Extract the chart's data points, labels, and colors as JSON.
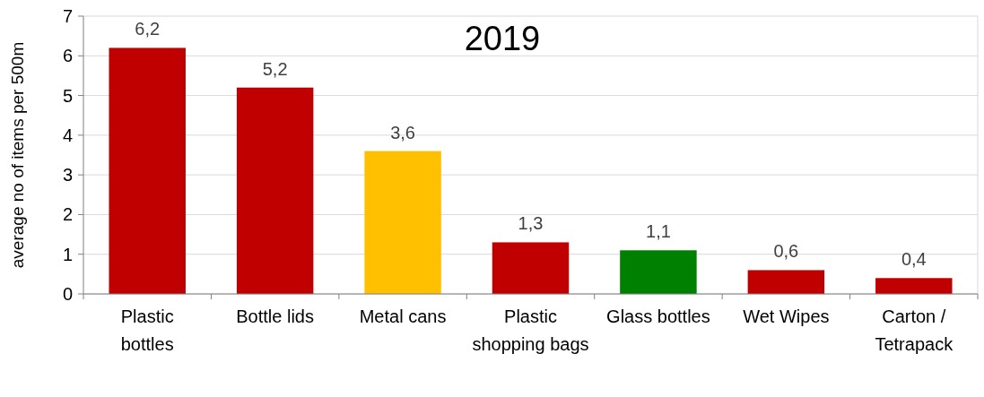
{
  "chart_data": {
    "type": "bar",
    "title": "2019",
    "ylabel": "average no of items per 500m",
    "categories": [
      "Plastic bottles",
      "Bottle lids",
      "Metal cans",
      "Plastic shopping bags",
      "Glass bottles",
      "Wet Wipes",
      "Carton / Tetrapack"
    ],
    "values": [
      6.2,
      5.2,
      3.6,
      1.3,
      1.1,
      0.6,
      0.4
    ],
    "colors": [
      "#c00000",
      "#c00000",
      "#ffc000",
      "#c00000",
      "#008000",
      "#c00000",
      "#c00000"
    ],
    "value_labels": [
      "6,2",
      "5,2",
      "3,6",
      "1,3",
      "1,1",
      "0,6",
      "0,4"
    ],
    "ylim": [
      0,
      7
    ],
    "yticks": [
      0,
      1,
      2,
      3,
      4,
      5,
      6,
      7
    ],
    "grid": "y"
  }
}
